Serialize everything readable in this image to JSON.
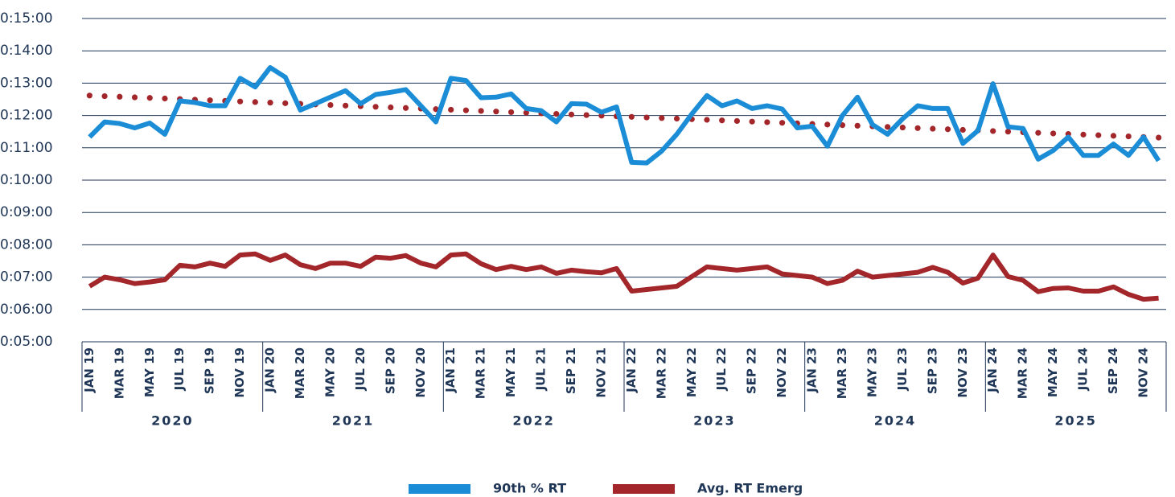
{
  "chart_data": {
    "type": "line",
    "categories": [
      "JAN 19",
      null,
      "MAR 19",
      null,
      "MAY 19",
      null,
      "JUL 19",
      null,
      "SEP 19",
      null,
      "NOV 19",
      null,
      "JAN 20",
      null,
      "MAR 20",
      null,
      "MAY 20",
      null,
      "JUL 20",
      null,
      "SEP 20",
      null,
      "NOV 20",
      null,
      "JAN 21",
      null,
      "MAR 21",
      null,
      "MAY 21",
      null,
      "JUL 21",
      null,
      "SEP 21",
      null,
      "NOV 21",
      null,
      "JAN 22",
      null,
      "MAR 22",
      null,
      "MAY 22",
      null,
      "JUL 22",
      null,
      "SEP 22",
      null,
      "NOV 22",
      null,
      "JAN 23",
      null,
      "MAR 23",
      null,
      "MAY 23",
      null,
      "JUL 23",
      null,
      "SEP 23",
      null,
      "NOV 23",
      null,
      "JAN 24",
      null,
      "MAR 24",
      null,
      "MAY 24",
      null,
      "JUL 24",
      null,
      "SEP 24",
      null,
      "NOV 24",
      null
    ],
    "groups": [
      "2020",
      "2021",
      "2022",
      "2023",
      "2024",
      "2025"
    ],
    "series": [
      {
        "name": "90th % RT",
        "color": "#1b8dd6",
        "values": [
          680,
          708,
          705,
          697,
          706,
          685,
          747,
          744,
          738,
          738,
          789,
          773,
          809,
          791,
          730,
          742,
          754,
          766,
          742,
          759,
          763,
          768,
          738,
          708,
          789,
          785,
          753,
          754,
          760,
          733,
          729,
          708,
          742,
          741,
          726,
          736,
          633,
          632,
          654,
          685,
          723,
          757,
          738,
          747,
          733,
          738,
          732,
          697,
          700,
          663,
          720,
          754,
          703,
          685,
          714,
          738,
          733,
          733,
          668,
          692,
          779,
          699,
          696,
          639,
          655,
          680,
          646,
          646,
          667,
          646,
          680,
          636
        ]
      },
      {
        "name": "Avg. RT Emerg",
        "color": "#a3262a",
        "values": [
          403,
          420,
          415,
          408,
          411,
          415,
          442,
          439,
          446,
          440,
          461,
          463,
          451,
          461,
          443,
          436,
          446,
          446,
          440,
          457,
          455,
          460,
          446,
          439,
          461,
          463,
          445,
          434,
          440,
          434,
          439,
          427,
          433,
          430,
          428,
          436,
          394,
          397,
          400,
          403,
          421,
          439,
          436,
          433,
          436,
          439,
          426,
          423,
          420,
          408,
          414,
          431,
          420,
          423,
          426,
          429,
          438,
          429,
          409,
          418,
          461,
          421,
          414,
          393,
          399,
          400,
          394,
          394,
          402,
          388,
          379,
          381
        ]
      }
    ],
    "trendline": {
      "color": "#a3262a",
      "values": [
        757,
        679
      ]
    },
    "ylim": [
      300,
      900
    ],
    "yticks": [
      {
        "value": 900,
        "label": "0:15:00"
      },
      {
        "value": 840,
        "label": "0:14:00"
      },
      {
        "value": 780,
        "label": "0:13:00"
      },
      {
        "value": 720,
        "label": "0:12:00"
      },
      {
        "value": 660,
        "label": "0:11:00"
      },
      {
        "value": 600,
        "label": "0:10:00"
      },
      {
        "value": 540,
        "label": "0:09:00"
      },
      {
        "value": 480,
        "label": "0:08:00"
      },
      {
        "value": 420,
        "label": "0:07:00"
      },
      {
        "value": 360,
        "label": "0:06:00"
      },
      {
        "value": 300,
        "label": "0:05:00"
      }
    ],
    "grid": true
  }
}
